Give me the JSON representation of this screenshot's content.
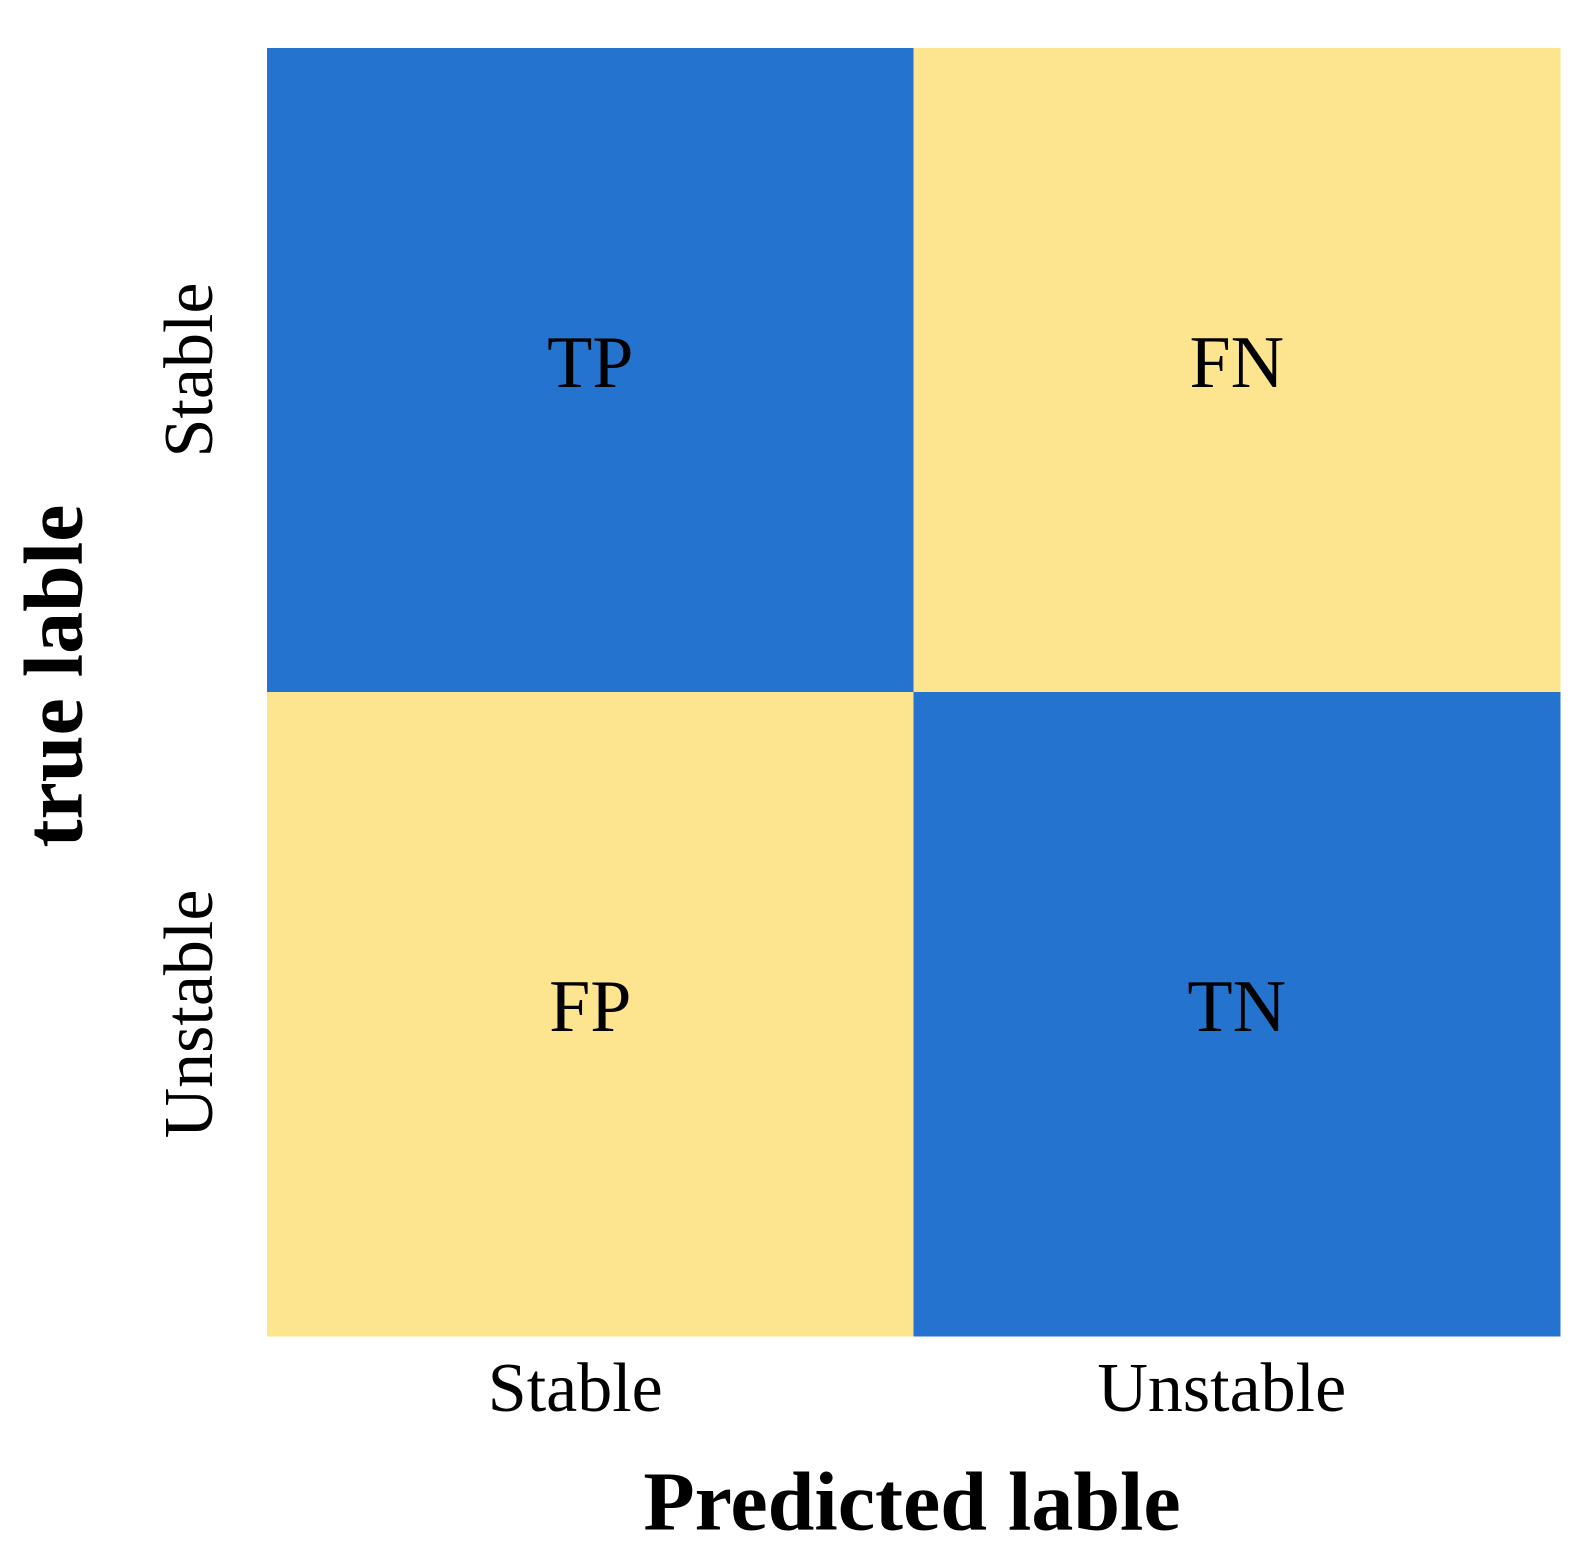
{
  "matrix": {
    "x_axis_title": "Predicted lable",
    "y_axis_title": "true lable",
    "x_categories": [
      "Stable",
      "Unstable"
    ],
    "y_categories": [
      "Stable",
      "Unstable"
    ],
    "cells": [
      [
        {
          "label": "TP",
          "color": "#2473cf"
        },
        {
          "label": "FN",
          "color": "#fde48f"
        }
      ],
      [
        {
          "label": "FP",
          "color": "#fde48f"
        },
        {
          "label": "TN",
          "color": "#2473cf"
        }
      ]
    ]
  }
}
